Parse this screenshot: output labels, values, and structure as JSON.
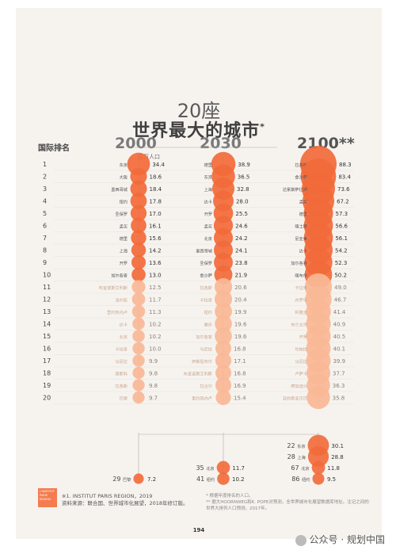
{
  "title_number": "20座",
  "title": "世界最大的城市",
  "title_mark": "*",
  "rank_header": "国际排名",
  "unit_label": "百万人口",
  "watermark": "公众号 · 规划中国",
  "page_number": "194",
  "source_lines": [
    "※1. INSTITUT PARIS REGION，2019",
    "资料来源：联合国、世界城市化展望，2018年修订版。"
  ],
  "notes": [
    "* 根据年度排名的人口。",
    "** 据大HOORNWEG和K. POPE对预测，全世界城市化展望数据库地址。注记之间的世界大排列人口预测，2017年。"
  ],
  "logo_text": "L'INSTITUT PARIS REGION",
  "colors": {
    "accent": "#f26a3a",
    "pale": "#f9b996",
    "line": "#b0aaa4",
    "text_light": "#c9a68f"
  },
  "chart_data": {
    "type": "bubble",
    "years": [
      "2000",
      "2030",
      "2100**"
    ],
    "ranks": [
      1,
      2,
      3,
      4,
      5,
      6,
      7,
      8,
      9,
      10,
      11,
      12,
      13,
      14,
      15,
      16,
      17,
      18,
      19,
      20
    ],
    "series": [
      {
        "name": "2000",
        "cities": [
          "东京",
          "大阪",
          "墨西哥城",
          "纽约",
          "圣保罗",
          "孟买",
          "德里",
          "上海",
          "开罗",
          "加尔各答",
          "布宜诺斯艾利斯",
          "洛杉矶",
          "里约热内卢",
          "达卡",
          "北京",
          "卡拉奇",
          "马尼拉",
          "莫斯科",
          "拉各斯",
          "巴黎"
        ],
        "values": [
          34.4,
          18.6,
          18.4,
          17.8,
          17.0,
          16.1,
          15.6,
          14.2,
          13.6,
          13.0,
          12.5,
          11.7,
          11.3,
          10.2,
          10.2,
          10.0,
          9.9,
          9.8,
          9.8,
          9.7
        ]
      },
      {
        "name": "2030",
        "cities": [
          "德里",
          "东京",
          "上海",
          "达卡",
          "开罗",
          "孟买",
          "北京",
          "墨西哥城",
          "圣保罗",
          "金沙萨",
          "拉各斯",
          "卡拉奇",
          "纽约",
          "重庆",
          "加尔各答",
          "马尼拉",
          "伊斯坦布尔",
          "布宜诺斯艾利斯",
          "拉合尔",
          "里约热内卢"
        ],
        "values": [
          38.9,
          36.5,
          32.8,
          28.0,
          25.5,
          24.6,
          24.2,
          24.1,
          23.8,
          21.9,
          20.6,
          20.4,
          19.9,
          19.6,
          19.6,
          16.8,
          17.1,
          16.8,
          16.9,
          15.4
        ]
      },
      {
        "name": "2100**",
        "cities": [
          "拉各斯",
          "金沙萨",
          "达累斯萨拉姆",
          "孟买",
          "德里",
          "喀土穆",
          "尼亚美",
          "达卡",
          "加尔各答",
          "喀布尔",
          "卡拉奇",
          "内罗毕",
          "利隆圭",
          "布兰太尔",
          "开罗",
          "坎帕拉",
          "马尼拉",
          "卢萨卡",
          "摩加迪沙",
          "亚的斯亚贝巴"
        ],
        "values": [
          88.3,
          83.4,
          73.6,
          67.2,
          57.3,
          56.6,
          56.1,
          54.2,
          52.3,
          50.2,
          49.0,
          46.7,
          41.4,
          40.9,
          40.5,
          40.1,
          39.9,
          37.7,
          36.3,
          35.8
        ]
      }
    ],
    "extra": [
      {
        "rank": 22,
        "city": "东京",
        "value": 30.1
      },
      {
        "rank": 28,
        "city": "上海",
        "value": 28.8
      },
      {
        "rank": 35,
        "city": "北京",
        "value": 11.7
      },
      {
        "rank": 41,
        "city": "纽约",
        "value": 10.2
      },
      {
        "rank": 67,
        "city": "北京",
        "value": 11.8
      },
      {
        "rank": 86,
        "city": "纽约",
        "value": 9.5
      },
      {
        "rank": 29,
        "city": "巴黎",
        "value": 7.2
      }
    ],
    "extra_ranks": [
      22,
      28,
      35,
      41,
      67,
      86,
      29
    ]
  }
}
